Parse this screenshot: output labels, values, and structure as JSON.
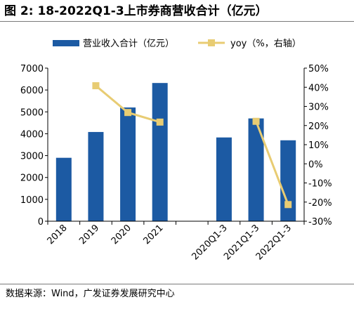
{
  "title": "图 2: 18-2022Q1-3上市券商营收合计（亿元）",
  "source": "数据来源：Wind，广发证券发展研究中心",
  "colors": {
    "bar": "#1c5aa3",
    "line": "#e8cc73",
    "marker": "#e8cc73",
    "axis": "#000000"
  },
  "chart_data": {
    "type": "bar",
    "categories": [
      "2018",
      "2019",
      "2020",
      "2021",
      "",
      "2020Q1-3",
      "2021Q1-3",
      "2022Q1-3"
    ],
    "series": [
      {
        "name": "营业收入合计（亿元）",
        "type": "bar",
        "axis": "left",
        "values": [
          2900,
          4080,
          5200,
          6320,
          null,
          3830,
          4700,
          3700
        ]
      },
      {
        "name": "yoy（%，右轴）",
        "type": "line",
        "axis": "right",
        "segments": [
          [
            1,
            2,
            3
          ],
          [
            6,
            7
          ]
        ],
        "values": [
          null,
          40.8,
          26.8,
          21.8,
          null,
          null,
          22.2,
          -21.3
        ]
      }
    ],
    "legend_position": "top",
    "y_left": {
      "min": 0,
      "max": 7000,
      "ticks": [
        "0",
        "1000",
        "2000",
        "3000",
        "4000",
        "5000",
        "6000",
        "7000"
      ]
    },
    "y_right": {
      "min": -30,
      "max": 50,
      "ticks": [
        "-30%",
        "-20%",
        "-10%",
        "0%",
        "10%",
        "20%",
        "30%",
        "40%",
        "50%"
      ]
    },
    "grid": false
  }
}
